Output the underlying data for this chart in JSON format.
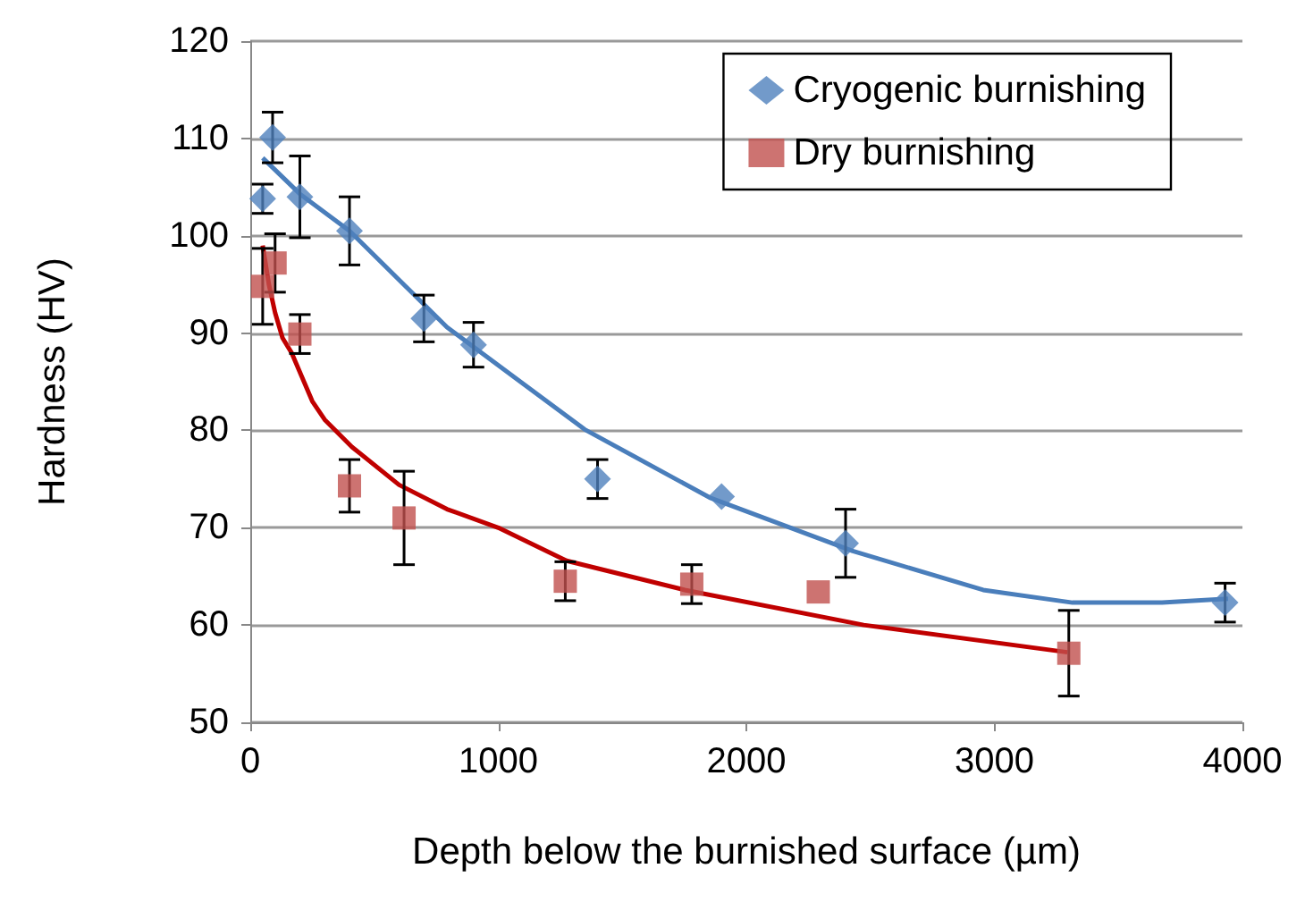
{
  "chart_data": {
    "type": "scatter",
    "xlabel": "Depth below the burnished surface (µm)",
    "ylabel": "Hardness (HV)",
    "xlim": [
      0,
      4000
    ],
    "xticks": [
      0,
      1000,
      2000,
      3000,
      4000
    ],
    "ylim": [
      50,
      120
    ],
    "yticks": [
      50,
      60,
      70,
      80,
      90,
      100,
      110,
      120
    ],
    "grid": "y",
    "legend": "top right",
    "series": [
      {
        "name": "Cryogenic burnishing",
        "color": "#4f81bd",
        "marker": "diamond",
        "x": [
          50,
          90,
          200,
          400,
          700,
          900,
          1400,
          1900,
          2400,
          3930
        ],
        "values": [
          103.8,
          110.1,
          104,
          100.5,
          91.5,
          88.8,
          75,
          73.2,
          68.4,
          62.3
        ],
        "errors": [
          1.5,
          2.6,
          4.2,
          3.5,
          2.4,
          2.3,
          2,
          null,
          3.5,
          2
        ]
      },
      {
        "name": "Dry burnishing",
        "color": "#c0504d",
        "marker": "square",
        "x": [
          50,
          100,
          200,
          400,
          620,
          1270,
          1780,
          2290,
          3300
        ],
        "values": [
          94.8,
          97.2,
          89.9,
          74.3,
          71,
          64.5,
          64.2,
          63.4,
          57.1
        ],
        "errors": [
          3.9,
          3,
          2,
          2.7,
          4.8,
          2,
          2,
          null,
          4.4
        ]
      },
      {
        "type": "line",
        "color": "#4a7ebb",
        "marker": "none",
        "x": [
          50,
          200,
          400,
          793,
          1100,
          1348,
          1852,
          2429,
          2955,
          3315,
          3676,
          3942
        ],
        "values": [
          108,
          104.3,
          100.5,
          90.6,
          84.8,
          80.1,
          73.1,
          67.6,
          63.6,
          62.3,
          62.3,
          62.7
        ]
      },
      {
        "type": "line",
        "color": "#c00000",
        "marker": "none",
        "x": [
          50,
          75,
          100,
          130,
          166,
          250,
          300,
          410,
          600,
          793,
          1000,
          1275,
          1752,
          2473,
          3294
        ],
        "values": [
          99,
          95,
          92.1,
          89.5,
          88,
          83,
          81.1,
          78.3,
          74.4,
          71.9,
          70,
          66.6,
          63.6,
          60,
          57.2
        ]
      }
    ]
  }
}
